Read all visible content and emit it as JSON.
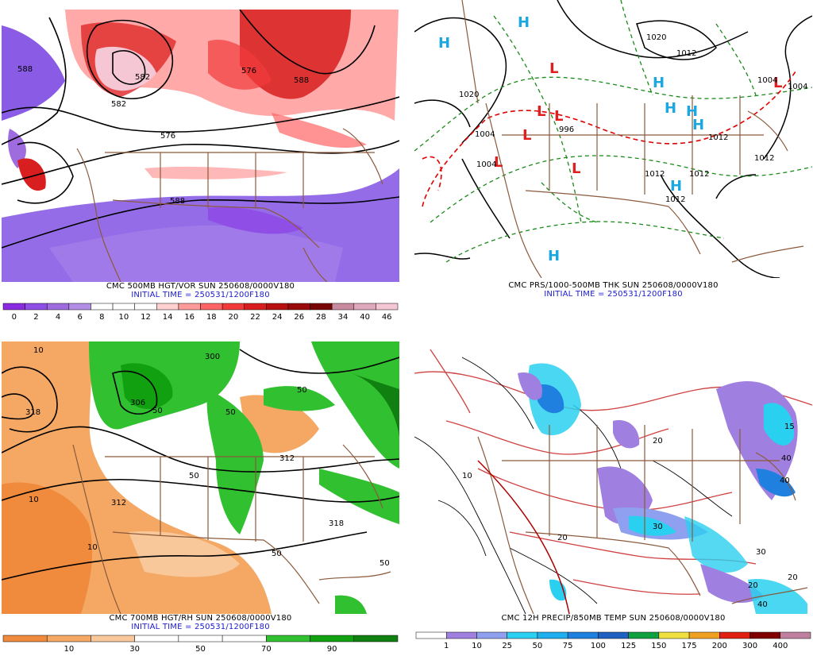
{
  "panels": [
    {
      "title": "CMC 500MB HGT/VOR SUN 250608/0000V180",
      "subtitle": "INITIAL TIME = 250531/1200F180",
      "contour_labels": [
        "588",
        "582",
        "582",
        "576",
        "588",
        "588",
        "576"
      ],
      "colorbar": {
        "labels": [
          "0",
          "2",
          "4",
          "6",
          "8",
          "10",
          "12",
          "14",
          "16",
          "18",
          "20",
          "22",
          "24",
          "26",
          "28",
          "34",
          "40",
          "46"
        ],
        "colors": [
          "#8a2be2",
          "#8f4ee6",
          "#9f6ce0",
          "#b28ee6",
          "#ffffff",
          "#ffffff",
          "#ffffff",
          "#ffd0d0",
          "#ff9a9a",
          "#ff6464",
          "#f23a3a",
          "#d81e1e",
          "#b81010",
          "#9b0a0a",
          "#7a0505",
          "#c98aa0",
          "#e0a8bc",
          "#f5c6d4"
        ]
      }
    },
    {
      "title": "CMC PRS/1000-500MB THK SUN 250608/0000V180",
      "subtitle": "INITIAL TIME = 250531/1200F180",
      "pressure_labels": [
        "1020",
        "1020",
        "1012",
        "1012",
        "1012",
        "1012",
        "1012",
        "1012",
        "996",
        "1004",
        "1004",
        "1004",
        "1004"
      ],
      "highs": [
        "H",
        "H",
        "H",
        "H",
        "H",
        "H",
        "H",
        "H"
      ],
      "lows": [
        "L",
        "L",
        "L",
        "L",
        "L",
        "L",
        "L"
      ]
    },
    {
      "title": "CMC 700MB HGT/RH SUN 250608/0000V180",
      "subtitle": "INITIAL TIME = 250531/1200F180",
      "contour_labels": [
        "318",
        "312",
        "306",
        "312",
        "318",
        "300"
      ],
      "rh_labels": [
        "10",
        "10",
        "10",
        "50",
        "50",
        "50",
        "50",
        "50",
        "50"
      ],
      "colorbar": {
        "labels": [
          "10",
          "30",
          "50",
          "70",
          "90"
        ],
        "colors": [
          "#f08a3c",
          "#f4a864",
          "#f8c89a",
          "#ffffff",
          "#ffffff",
          "#ffffff",
          "#30c030",
          "#10a010",
          "#108010"
        ]
      }
    },
    {
      "title": "CMC 12H PRECIP/850MB TEMP SUN 250608/0000V180",
      "temp_labels": [
        "15",
        "10",
        "20",
        "30",
        "30",
        "40",
        "40",
        "20",
        "20",
        "20",
        "40"
      ],
      "colorbar": {
        "labels": [
          "1",
          "10",
          "25",
          "50",
          "75",
          "100",
          "125",
          "150",
          "175",
          "200",
          "300",
          "400"
        ],
        "colors": [
          "#ffffff",
          "#9f7fdf",
          "#8fa0f0",
          "#2ad0f0",
          "#20b0f0",
          "#2080e0",
          "#2060c0",
          "#10a040",
          "#f0e040",
          "#f0a020",
          "#e02010",
          "#800000",
          "#c080a0"
        ]
      }
    }
  ]
}
